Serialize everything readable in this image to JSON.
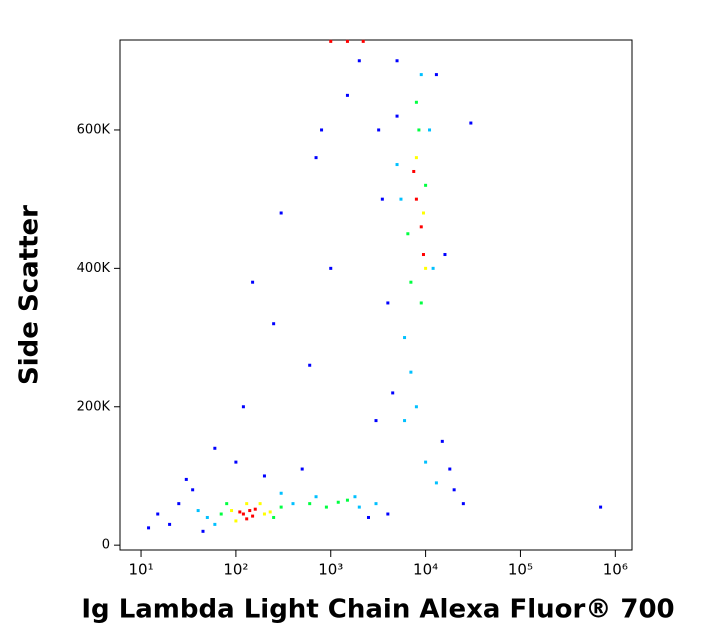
{
  "chart_data": {
    "type": "scatter",
    "x_label": "Ig Lambda Light Chain Alexa Fluor® 700",
    "y_label": "Side Scatter",
    "xscale": "log",
    "xlim": [
      6,
      1500000
    ],
    "xticks": [
      {
        "value": 10,
        "label": "10¹"
      },
      {
        "value": 100,
        "label": "10²"
      },
      {
        "value": 1000,
        "label": "10³"
      },
      {
        "value": 10000,
        "label": "10⁴"
      },
      {
        "value": 100000,
        "label": "10⁵"
      },
      {
        "value": 1000000,
        "label": "10⁶"
      }
    ],
    "ylim": [
      -7000,
      730000
    ],
    "yticks": [
      0,
      {
        "value": 200000,
        "label": "200K"
      },
      {
        "value": 400000,
        "label": "400K"
      },
      {
        "value": 600000,
        "label": "600K"
      }
    ],
    "series": [
      {
        "color": "#0000ff",
        "x": [
          15,
          20,
          25,
          30,
          200,
          100,
          500,
          2500,
          4000,
          4500,
          15000,
          20000,
          25000,
          4000,
          3500,
          13000,
          5000,
          300,
          150,
          250,
          800,
          1500,
          2000,
          1000,
          700000,
          30000,
          12,
          35,
          60,
          45,
          3000,
          18000,
          600,
          700,
          120,
          3200,
          16000,
          5000
        ],
        "values": [
          45000,
          30000,
          60000,
          95000,
          100000,
          120000,
          110000,
          40000,
          45000,
          220000,
          150000,
          80000,
          60000,
          350000,
          500000,
          680000,
          700000,
          480000,
          380000,
          320000,
          600000,
          650000,
          700000,
          400000,
          55000,
          610000,
          25000,
          80000,
          140000,
          20000,
          180000,
          110000,
          260000,
          560000,
          200000,
          600000,
          420000,
          620000
        ]
      },
      {
        "color": "#00c0ff",
        "x": [
          50,
          40,
          400,
          700,
          2000,
          1800,
          60,
          300,
          3000,
          6000,
          11000,
          5500,
          12000,
          7000,
          8000,
          9000,
          6000,
          10000,
          13000,
          5000
        ],
        "values": [
          40000,
          50000,
          60000,
          70000,
          55000,
          70000,
          30000,
          75000,
          60000,
          300000,
          600000,
          500000,
          400000,
          250000,
          200000,
          680000,
          180000,
          120000,
          90000,
          550000
        ]
      },
      {
        "color": "#00ff40",
        "x": [
          70,
          300,
          250,
          600,
          1200,
          900,
          1500,
          80,
          8500,
          7000,
          10000,
          6500,
          9000,
          8000
        ],
        "values": [
          45000,
          55000,
          40000,
          60000,
          62000,
          55000,
          65000,
          60000,
          600000,
          380000,
          520000,
          450000,
          350000,
          640000
        ]
      },
      {
        "color": "#ffff00",
        "x": [
          90,
          200,
          100,
          180,
          130,
          230,
          8000,
          9500,
          10000
        ],
        "values": [
          50000,
          45000,
          35000,
          60000,
          60000,
          48000,
          560000,
          480000,
          400000
        ]
      },
      {
        "color": "#ff0000",
        "x": [
          120,
          140,
          150,
          110,
          130,
          160,
          9000,
          8000,
          9500,
          7500,
          1000,
          1500,
          2200
        ],
        "values": [
          45000,
          50000,
          42000,
          48000,
          38000,
          52000,
          460000,
          500000,
          420000,
          540000,
          728000,
          728000,
          728000
        ]
      }
    ]
  }
}
